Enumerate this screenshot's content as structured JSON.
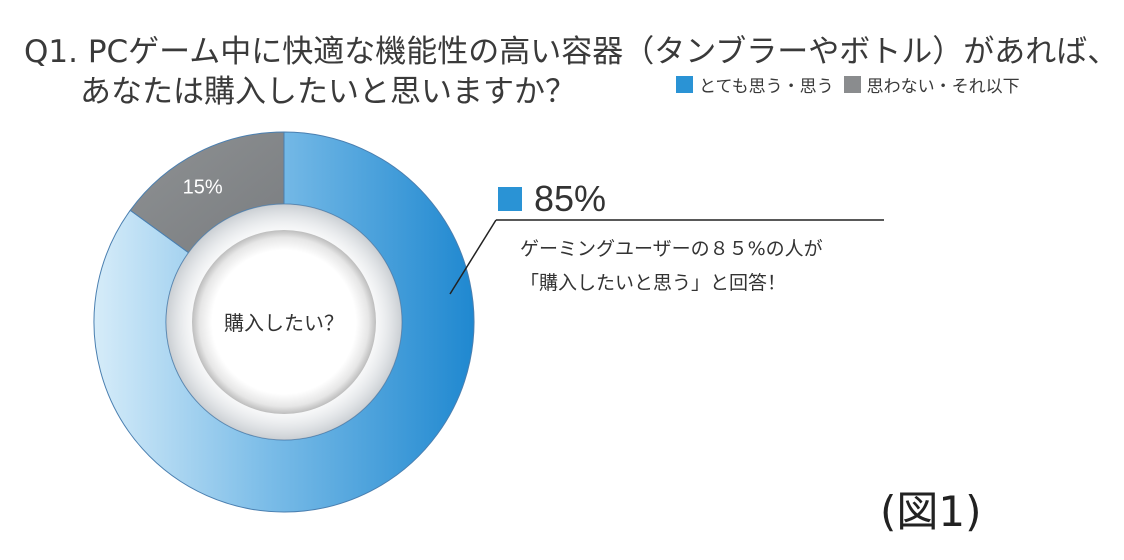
{
  "title_line1": "Q1. PCゲーム中に快適な機能性の高い容器（タンブラーやボトル）があれば、",
  "title_line2": "あなたは購入したいと思いますか？",
  "legend": [
    {
      "label": "とても思う・思う",
      "color": "#2a93d5"
    },
    {
      "label": "思わない・それ以下",
      "color": "#8a8c8e"
    }
  ],
  "center_label": "購入したい？",
  "callout": {
    "value_label": "85%",
    "line1": "ゲーミングユーザーの８５%の人が",
    "line2": "「購入したいと思う」と回答！"
  },
  "figure_label": "(図1)",
  "chart_data": {
    "type": "pie",
    "style": "donut",
    "categories": [
      "とても思う・思う",
      "思わない・それ以下"
    ],
    "values": [
      85,
      15
    ],
    "slice_labels": [
      "",
      "15%"
    ],
    "colors": [
      "#2a93d5",
      "#8a8c8e"
    ],
    "title": "Q1. PCゲーム中に快適な機能性の高い容器（タンブラーやボトル）があれば、あなたは購入したいと思いますか？",
    "legend_position": "top-right"
  }
}
